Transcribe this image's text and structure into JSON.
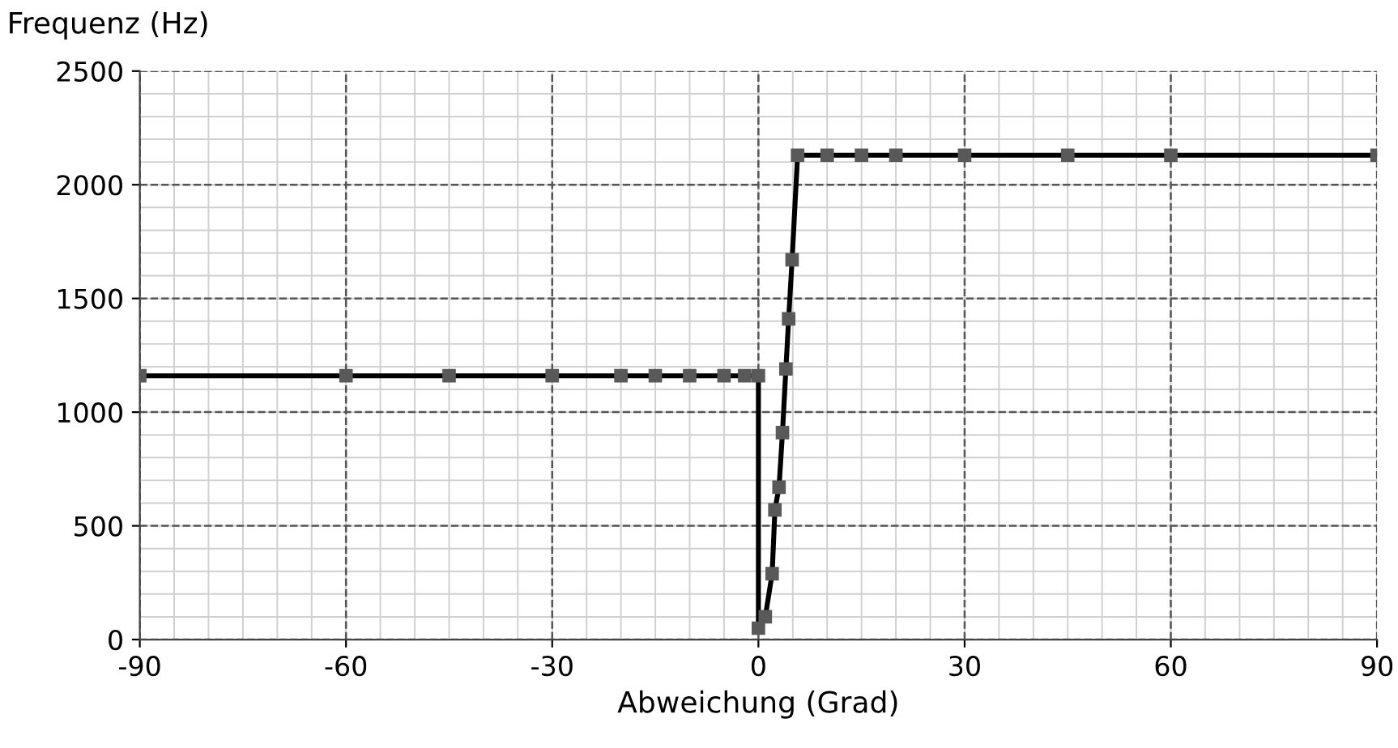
{
  "chart_data": {
    "type": "line",
    "xlabel": "Abweichung (Grad)",
    "ylabel": "Frequenz (Hz)",
    "series": [
      {
        "color": "#000000",
        "x": [
          -90,
          -60,
          -45,
          -30,
          -20,
          -15,
          -10,
          -5,
          -2,
          0,
          0,
          1,
          2,
          2.4,
          3,
          3.5,
          4,
          4.4,
          4.9,
          5.7,
          10,
          15,
          20,
          30,
          45,
          60,
          90
        ],
        "values": [
          1160,
          1160,
          1160,
          1160,
          1160,
          1160,
          1160,
          1160,
          1160,
          1160,
          50,
          100,
          290,
          570,
          670,
          910,
          1190,
          1410,
          1670,
          2130,
          2130,
          2130,
          2130,
          2130,
          2130,
          2130,
          2130
        ]
      }
    ],
    "marker": "square",
    "xlim": [
      -90,
      90
    ],
    "ylim": [
      0,
      2500
    ],
    "xticks": [
      -90,
      -60,
      -30,
      0,
      30,
      60,
      90
    ],
    "yticks": [
      0,
      500,
      1000,
      1500,
      2000,
      2500
    ],
    "grid": true
  }
}
